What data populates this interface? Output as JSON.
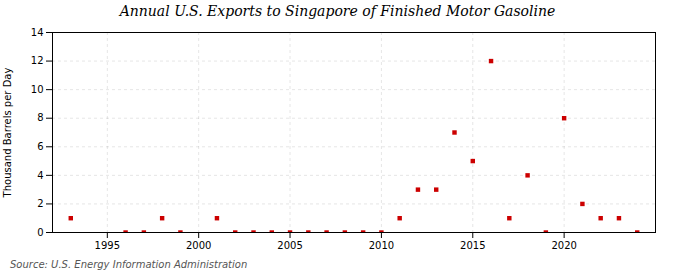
{
  "chart_data": {
    "type": "scatter",
    "title": "Annual U.S. Exports to Singapore of Finished Motor Gasoline",
    "ylabel": "Thousand Barrels per Day",
    "source": "Source: U.S. Energy Information Administration",
    "x": [
      1993,
      1996,
      1997,
      1998,
      1999,
      2001,
      2002,
      2003,
      2004,
      2005,
      2006,
      2007,
      2008,
      2009,
      2010,
      2011,
      2012,
      2013,
      2014,
      2015,
      2016,
      2017,
      2018,
      2019,
      2020,
      2021,
      2022,
      2023,
      2024
    ],
    "values": [
      1,
      0,
      0,
      1,
      0,
      1,
      0,
      0,
      0,
      0,
      0,
      0,
      0,
      0,
      0,
      1,
      3,
      3,
      7,
      5,
      12,
      1,
      4,
      0,
      8,
      2,
      1,
      1,
      0
    ],
    "color": "#cc0000",
    "marker": "square",
    "xlim": [
      1992,
      2025
    ],
    "xticks": [
      1995,
      2000,
      2005,
      2010,
      2015,
      2020
    ],
    "ylim": [
      0,
      14
    ],
    "yticks": [
      0,
      2,
      4,
      6,
      8,
      10,
      12,
      14
    ],
    "grid": true
  }
}
